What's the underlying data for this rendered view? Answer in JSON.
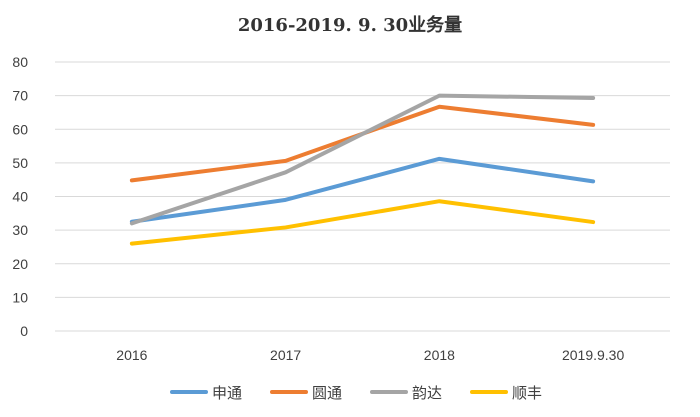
{
  "chart_data": {
    "type": "line",
    "title": "2016-2019. 9. 30业务量",
    "xlabel": "",
    "ylabel": "",
    "categories": [
      "2016",
      "2017",
      "2018",
      "2019.9.30"
    ],
    "ylim": [
      0,
      80
    ],
    "yticks": [
      0,
      10,
      20,
      30,
      40,
      50,
      60,
      70,
      80
    ],
    "grid": true,
    "legend_position": "bottom",
    "series": [
      {
        "name": "申通",
        "color": "#5B9BD5",
        "values": [
          32.5,
          39,
          51.2,
          44.5
        ]
      },
      {
        "name": "圆通",
        "color": "#ED7D31",
        "values": [
          44.8,
          50.6,
          66.7,
          61.3
        ]
      },
      {
        "name": "韵达",
        "color": "#A5A5A5",
        "values": [
          32,
          47.2,
          70,
          69.3
        ]
      },
      {
        "name": "顺丰",
        "color": "#FFC000",
        "values": [
          26,
          30.8,
          38.6,
          32.4
        ]
      }
    ]
  }
}
